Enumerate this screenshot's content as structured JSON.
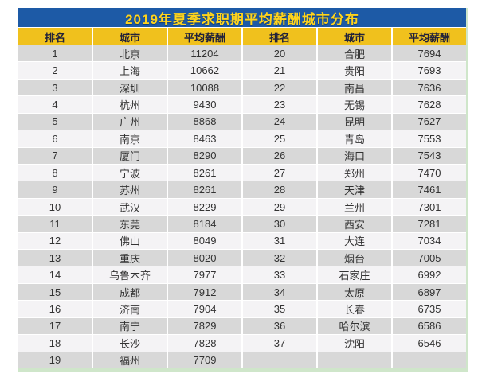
{
  "chart_data": {
    "type": "table",
    "title": "2019年夏季求职期平均薪酬城市分布",
    "columns": [
      "排名",
      "城市",
      "平均薪酬",
      "排名",
      "城市",
      "平均薪酬"
    ],
    "layout": {
      "column_groups": 2,
      "left_group_rows": 19,
      "right_group_rows": 18,
      "striped": true,
      "first_row_shade": "gray"
    },
    "rankings": [
      {
        "rank": 1,
        "city": "北京",
        "salary": 11204
      },
      {
        "rank": 2,
        "city": "上海",
        "salary": 10662
      },
      {
        "rank": 3,
        "city": "深圳",
        "salary": 10088
      },
      {
        "rank": 4,
        "city": "杭州",
        "salary": 9430
      },
      {
        "rank": 5,
        "city": "广州",
        "salary": 8868
      },
      {
        "rank": 6,
        "city": "南京",
        "salary": 8463
      },
      {
        "rank": 7,
        "city": "厦门",
        "salary": 8290
      },
      {
        "rank": 8,
        "city": "宁波",
        "salary": 8261
      },
      {
        "rank": 9,
        "city": "苏州",
        "salary": 8261
      },
      {
        "rank": 10,
        "city": "武汉",
        "salary": 8229
      },
      {
        "rank": 11,
        "city": "东莞",
        "salary": 8184
      },
      {
        "rank": 12,
        "city": "佛山",
        "salary": 8049
      },
      {
        "rank": 13,
        "city": "重庆",
        "salary": 8020
      },
      {
        "rank": 14,
        "city": "乌鲁木齐",
        "salary": 7977
      },
      {
        "rank": 15,
        "city": "成都",
        "salary": 7912
      },
      {
        "rank": 16,
        "city": "济南",
        "salary": 7904
      },
      {
        "rank": 17,
        "city": "南宁",
        "salary": 7829
      },
      {
        "rank": 18,
        "city": "长沙",
        "salary": 7828
      },
      {
        "rank": 19,
        "city": "福州",
        "salary": 7709
      },
      {
        "rank": 20,
        "city": "合肥",
        "salary": 7694
      },
      {
        "rank": 21,
        "city": "贵阳",
        "salary": 7693
      },
      {
        "rank": 22,
        "city": "南昌",
        "salary": 7636
      },
      {
        "rank": 23,
        "city": "无锡",
        "salary": 7628
      },
      {
        "rank": 24,
        "city": "昆明",
        "salary": 7627
      },
      {
        "rank": 25,
        "city": "青岛",
        "salary": 7553
      },
      {
        "rank": 26,
        "city": "海口",
        "salary": 7543
      },
      {
        "rank": 27,
        "city": "郑州",
        "salary": 7470
      },
      {
        "rank": 28,
        "city": "天津",
        "salary": 7461
      },
      {
        "rank": 29,
        "city": "兰州",
        "salary": 7301
      },
      {
        "rank": 30,
        "city": "西安",
        "salary": 7281
      },
      {
        "rank": 31,
        "city": "大连",
        "salary": 7034
      },
      {
        "rank": 32,
        "city": "烟台",
        "salary": 7005
      },
      {
        "rank": 33,
        "city": "石家庄",
        "salary": 6992
      },
      {
        "rank": 34,
        "city": "太原",
        "salary": 6897
      },
      {
        "rank": 35,
        "city": "长春",
        "salary": 6735
      },
      {
        "rank": 36,
        "city": "哈尔滨",
        "salary": 6586
      },
      {
        "rank": 37,
        "city": "沈阳",
        "salary": 6546
      }
    ]
  },
  "colors": {
    "page_bg": "#ffffff",
    "title_bg": "#1d5aa6",
    "title_text": "#ffd41c",
    "header_bg": "#f0c11d",
    "header_text": "#22223a",
    "row_odd_bg": "#d8d8d8",
    "row_even_bg": "#f4f3f5",
    "cell_text": "#333333",
    "bottom_accent": "#cfe6ca"
  }
}
